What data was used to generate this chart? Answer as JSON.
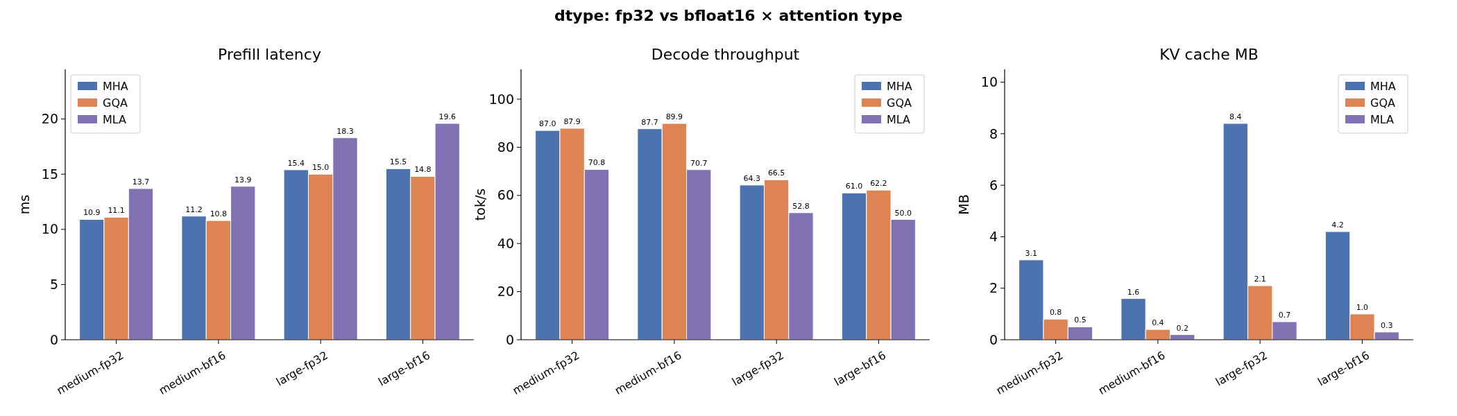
{
  "chart_data": [
    {
      "type": "bar",
      "title": "Prefill latency",
      "ylabel": "ms",
      "annotations": [
        "dtype: fp32 vs bfloat16 × attention type"
      ],
      "categories": [
        "medium-fp32",
        "medium-bf16",
        "large-fp32",
        "large-bf16"
      ],
      "series": [
        {
          "name": "MHA",
          "color": "#4c72b0",
          "values": [
            10.9,
            11.2,
            15.4,
            15.5
          ],
          "value_labels": [
            "10.9",
            "11.2",
            "15.4",
            "15.5"
          ]
        },
        {
          "name": "GQA",
          "color": "#dd8452",
          "values": [
            11.1,
            10.8,
            15.0,
            14.8
          ],
          "value_labels": [
            "11.1",
            "10.8",
            "15.0",
            "14.8"
          ]
        },
        {
          "name": "MLA",
          "color": "#8172b3",
          "values": [
            13.7,
            13.9,
            18.3,
            19.6
          ],
          "value_labels": [
            "13.7",
            "13.9",
            "18.3",
            "19.6"
          ]
        }
      ],
      "ylim": [
        0,
        24.5
      ],
      "yticks": [
        0,
        5,
        10,
        15,
        20
      ],
      "legend": "top left"
    },
    {
      "type": "bar",
      "title": "Decode throughput",
      "ylabel": "tok/s",
      "categories": [
        "medium-fp32",
        "medium-bf16",
        "large-fp32",
        "large-bf16"
      ],
      "series": [
        {
          "name": "MHA",
          "color": "#4c72b0",
          "values": [
            87.0,
            87.7,
            64.3,
            61.0
          ],
          "value_labels": [
            "87.0",
            "87.7",
            "64.3",
            "61.0"
          ]
        },
        {
          "name": "GQA",
          "color": "#dd8452",
          "values": [
            87.9,
            89.9,
            66.5,
            62.2
          ],
          "value_labels": [
            "87.9",
            "89.9",
            "66.5",
            "62.2"
          ]
        },
        {
          "name": "MLA",
          "color": "#8172b3",
          "values": [
            70.8,
            70.7,
            52.8,
            50.0
          ],
          "value_labels": [
            "70.8",
            "70.7",
            "52.8",
            "50.0"
          ]
        }
      ],
      "ylim": [
        0,
        112.4
      ],
      "yticks": [
        0,
        20,
        40,
        60,
        80,
        100
      ],
      "legend": "top right"
    },
    {
      "type": "bar",
      "title": "KV cache MB",
      "ylabel": "MB",
      "categories": [
        "medium-fp32",
        "medium-bf16",
        "large-fp32",
        "large-bf16"
      ],
      "series": [
        {
          "name": "MHA",
          "color": "#4c72b0",
          "values": [
            3.1,
            1.6,
            8.4,
            4.2
          ],
          "value_labels": [
            "3.1",
            "1.6",
            "8.4",
            "4.2"
          ]
        },
        {
          "name": "GQA",
          "color": "#dd8452",
          "values": [
            0.8,
            0.4,
            2.1,
            1.0
          ],
          "value_labels": [
            "0.8",
            "0.4",
            "2.1",
            "1.0"
          ]
        },
        {
          "name": "MLA",
          "color": "#8172b3",
          "values": [
            0.5,
            0.2,
            0.7,
            0.3
          ],
          "value_labels": [
            "0.5",
            "0.2",
            "0.7",
            "0.3"
          ]
        }
      ],
      "ylim": [
        0,
        10.5
      ],
      "yticks": [
        0,
        2,
        4,
        6,
        8,
        10
      ],
      "legend": "top right"
    }
  ]
}
